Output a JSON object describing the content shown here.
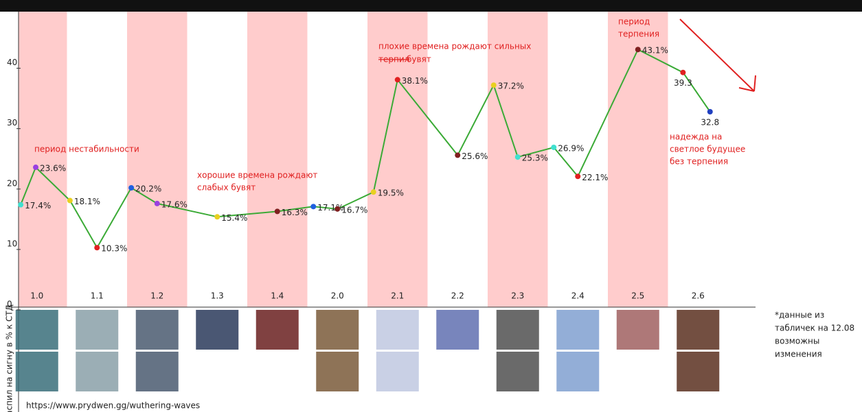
{
  "chart_data": {
    "type": "line",
    "categories": [
      "1.0",
      "1.1",
      "1.2",
      "1.3",
      "1.4",
      "2.0",
      "2.1",
      "2.2",
      "2.3",
      "2.4",
      "2.5",
      "2.6"
    ],
    "x": [
      0.23,
      0.48,
      1.05,
      1.5,
      2.07,
      2.5,
      3.5,
      4.5,
      5.1,
      5.5,
      6.1,
      6.5,
      7.5,
      8.1,
      8.5,
      9.1,
      9.5,
      10.5,
      11.25,
      11.7
    ],
    "values": [
      17.4,
      23.6,
      18.1,
      10.3,
      20.2,
      17.6,
      15.4,
      16.3,
      17.1,
      16.7,
      19.5,
      38.1,
      25.6,
      37.2,
      25.3,
      26.9,
      22.1,
      43.1,
      39.3,
      32.8
    ],
    "value_labels": [
      "17.4%",
      "23.6%",
      "18.1%",
      "10.3%",
      "20.2%",
      "17.6%",
      "15.4%",
      "16.3%",
      "17.1%",
      "16.7%",
      "19.5%",
      "38.1%",
      "25.6%",
      "37.2%",
      "25.3%",
      "26.9%",
      "22.1%",
      "43.1%",
      "39.3",
      "32.8"
    ],
    "point_colors": [
      "#40e0d0",
      "#9a40e0",
      "#e8d020",
      "#e02020",
      "#2060e0",
      "#9a40e0",
      "#e8d020",
      "#802020",
      "#2060e0",
      "#802020",
      "#e8d020",
      "#e02020",
      "#802020",
      "#e8d020",
      "#40e0d0",
      "#40e0d0",
      "#e02020",
      "#802020",
      "#e02020",
      "#2040c0"
    ],
    "color": "#3aaa35",
    "stripe_color": "#ffcccc",
    "xlim": [
      0,
      12
    ],
    "ylim": [
      0,
      45
    ],
    "yticks": [
      0,
      10,
      20,
      30,
      40
    ],
    "y_axis_label": "аспил на сигну в % к СТД",
    "annotations": [
      [
        "период нестабильности"
      ],
      [
        "хорошие времена рождают",
        "слабых бувят"
      ],
      [
        "плохие времена рождают сильных"
      ],
      [
        "терпил"
      ],
      [
        "бувят"
      ],
      [
        "период",
        "терпения"
      ],
      [
        "надежда на",
        "светлое будущее",
        "без терпения"
      ]
    ],
    "source": "https://www.prydwen.gg/wuthering-waves",
    "note": [
      "*данные из",
      "табличек на 12.08",
      "возможны",
      "изменения"
    ]
  }
}
